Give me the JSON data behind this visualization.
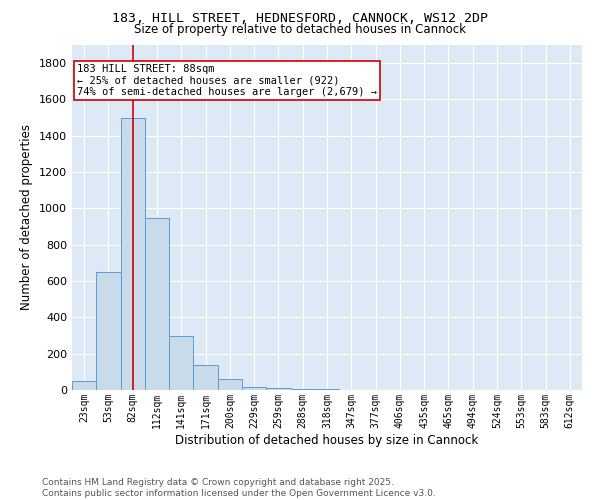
{
  "title_line1": "183, HILL STREET, HEDNESFORD, CANNOCK, WS12 2DP",
  "title_line2": "Size of property relative to detached houses in Cannock",
  "xlabel": "Distribution of detached houses by size in Cannock",
  "ylabel": "Number of detached properties",
  "categories": [
    "23sqm",
    "53sqm",
    "82sqm",
    "112sqm",
    "141sqm",
    "171sqm",
    "200sqm",
    "229sqm",
    "259sqm",
    "288sqm",
    "318sqm",
    "347sqm",
    "377sqm",
    "406sqm",
    "435sqm",
    "465sqm",
    "494sqm",
    "524sqm",
    "553sqm",
    "583sqm",
    "612sqm"
  ],
  "values": [
    50,
    650,
    1500,
    950,
    300,
    140,
    60,
    15,
    10,
    5,
    3,
    2,
    1,
    1,
    1,
    1,
    0,
    0,
    0,
    0,
    0
  ],
  "bar_color": "#c9daea",
  "bar_edge_color": "#5b9bd5",
  "vline_x": 2,
  "vline_color": "#cc0000",
  "annotation_text": "183 HILL STREET: 88sqm\n← 25% of detached houses are smaller (922)\n74% of semi-detached houses are larger (2,679) →",
  "annotation_box_color": "white",
  "annotation_box_edge_color": "#cc0000",
  "ylim": [
    0,
    1900
  ],
  "background_color": "#ddeaf6",
  "plot_bg_color": "#ddeaf6",
  "footer_line1": "Contains HM Land Registry data © Crown copyright and database right 2025.",
  "footer_line2": "Contains public sector information licensed under the Open Government Licence v3.0.",
  "grid_color": "white",
  "title_fontsize": 9.5,
  "subtitle_fontsize": 8.5,
  "axis_label_fontsize": 8.5,
  "tick_fontsize": 7,
  "annotation_fontsize": 7.5,
  "footer_fontsize": 6.5
}
